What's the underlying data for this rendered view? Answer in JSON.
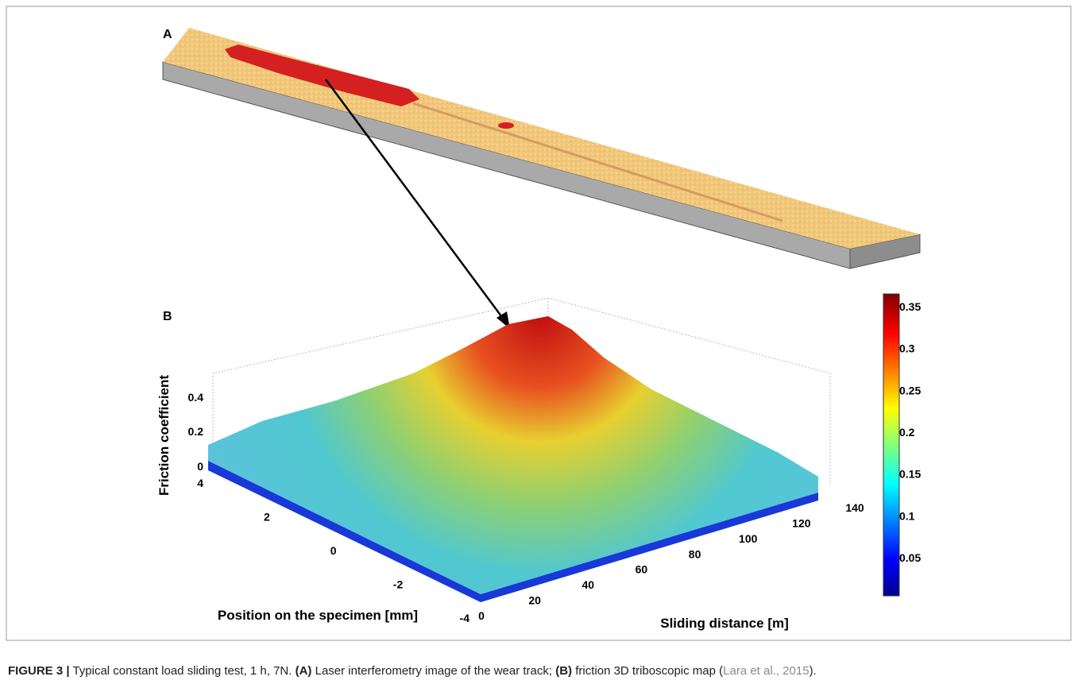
{
  "panels": [
    {
      "label": "A"
    },
    {
      "label": "B",
      "axes": {
        "z_label": "Friction coefficient",
        "z_ticks": [
          0,
          0.2,
          0.4
        ],
        "y_label": "Position on the specimen [mm]",
        "y_ticks": [
          -4,
          -2,
          0,
          2,
          4
        ],
        "x_label": "Sliding distance [m]",
        "x_ticks": [
          0,
          20,
          40,
          60,
          80,
          100,
          120,
          140
        ],
        "colorbar_ticks": [
          0.05,
          0.1,
          0.15,
          0.2,
          0.25,
          0.3,
          0.35
        ]
      }
    }
  ],
  "caption": [
    {
      "text": "FIGURE 3 |",
      "style": "bold"
    },
    {
      "text": " Typical constant load sliding test, 1 h, 7N. ",
      "style": "plain"
    },
    {
      "text": "(A)",
      "style": "bold"
    },
    {
      "text": " Laser interferometry image of the wear track; ",
      "style": "plain"
    },
    {
      "text": "(B)",
      "style": "bold"
    },
    {
      "text": " friction 3D triboscopic map (",
      "style": "plain"
    },
    {
      "text": "Lara et al., 2015",
      "style": "link"
    },
    {
      "text": ").",
      "style": "plain"
    }
  ]
}
